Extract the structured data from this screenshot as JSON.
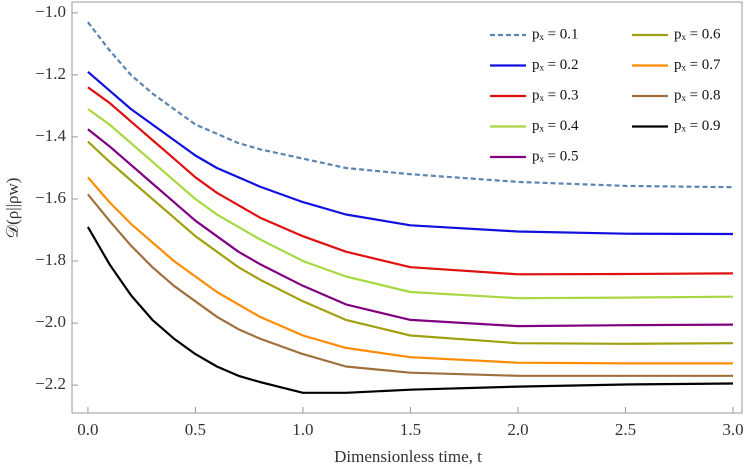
{
  "chart_data": {
    "type": "line",
    "x_label": "Dimensionless time, t",
    "y_label": "𝒟(ρ||ρw)",
    "x": [
      0,
      0.1,
      0.2,
      0.3,
      0.4,
      0.5,
      0.6,
      0.7,
      0.8,
      1.0,
      1.2,
      1.5,
      2.0,
      2.5,
      3.0
    ],
    "series": [
      {
        "name": "pₓ = 0.1",
        "color": "#5b84b1",
        "dashed": true,
        "values": [
          -1.03,
          -1.12,
          -1.2,
          -1.26,
          -1.31,
          -1.36,
          -1.39,
          -1.42,
          -1.44,
          -1.47,
          -1.5,
          -1.52,
          -1.545,
          -1.558,
          -1.562
        ]
      },
      {
        "name": "pₓ = 0.2",
        "color": "#1010e0",
        "values": [
          -1.19,
          -1.25,
          -1.31,
          -1.36,
          -1.41,
          -1.46,
          -1.5,
          -1.53,
          -1.56,
          -1.61,
          -1.65,
          -1.685,
          -1.705,
          -1.712,
          -1.713
        ]
      },
      {
        "name": "pₓ = 0.3",
        "color": "#e01010",
        "values": [
          -1.24,
          -1.29,
          -1.35,
          -1.41,
          -1.47,
          -1.53,
          -1.58,
          -1.62,
          -1.66,
          -1.72,
          -1.77,
          -1.82,
          -1.843,
          -1.842,
          -1.84
        ]
      },
      {
        "name": "pₓ = 0.4",
        "color": "#a8d840",
        "values": [
          -1.31,
          -1.36,
          -1.42,
          -1.48,
          -1.54,
          -1.6,
          -1.65,
          -1.69,
          -1.73,
          -1.8,
          -1.85,
          -1.9,
          -1.92,
          -1.918,
          -1.915
        ]
      },
      {
        "name": "pₓ = 0.5",
        "color": "#800080",
        "values": [
          -1.375,
          -1.43,
          -1.49,
          -1.55,
          -1.61,
          -1.67,
          -1.72,
          -1.77,
          -1.81,
          -1.88,
          -1.94,
          -1.99,
          -2.01,
          -2.007,
          -2.005
        ]
      },
      {
        "name": "pₓ = 0.6",
        "color": "#a0a010",
        "values": [
          -1.415,
          -1.48,
          -1.54,
          -1.6,
          -1.66,
          -1.72,
          -1.77,
          -1.82,
          -1.86,
          -1.93,
          -1.99,
          -2.04,
          -2.065,
          -2.067,
          -2.065
        ]
      },
      {
        "name": "pₓ = 0.7",
        "color": "#ff8c00",
        "values": [
          -1.53,
          -1.61,
          -1.68,
          -1.74,
          -1.8,
          -1.85,
          -1.9,
          -1.94,
          -1.98,
          -2.04,
          -2.08,
          -2.11,
          -2.128,
          -2.13,
          -2.13
        ]
      },
      {
        "name": "pₓ = 0.8",
        "color": "#a0703c",
        "values": [
          -1.585,
          -1.67,
          -1.75,
          -1.82,
          -1.88,
          -1.93,
          -1.98,
          -2.02,
          -2.05,
          -2.1,
          -2.14,
          -2.16,
          -2.17,
          -2.17,
          -2.17
        ]
      },
      {
        "name": "pₓ = 0.9",
        "color": "#000000",
        "values": [
          -1.69,
          -1.81,
          -1.91,
          -1.99,
          -2.05,
          -2.1,
          -2.14,
          -2.17,
          -2.19,
          -2.225,
          -2.225,
          -2.215,
          -2.205,
          -2.198,
          -2.195
        ]
      }
    ],
    "xlim": [
      -0.074,
      3.042
    ],
    "ylim": [
      -2.29,
      -0.965
    ],
    "xticks": [
      {
        "value": 0,
        "label": "0.0"
      },
      0.5,
      {
        "value": 1,
        "label": "1.0"
      },
      1.5,
      {
        "value": 2,
        "label": "2.0"
      },
      2.5,
      {
        "value": 3,
        "label": "3.0"
      }
    ],
    "yticks": [
      {
        "value": -1,
        "label": "−1.0"
      },
      {
        "value": -1.2,
        "label": "−1.2"
      },
      {
        "value": -1.4,
        "label": "−1.4"
      },
      {
        "value": -1.6,
        "label": "−1.6"
      },
      {
        "value": -1.8,
        "label": "−1.8"
      },
      {
        "value": -2,
        "label": "−2.0"
      },
      {
        "value": -2.2,
        "label": "−2.2"
      }
    ],
    "grid": false,
    "legend": "top-right"
  }
}
